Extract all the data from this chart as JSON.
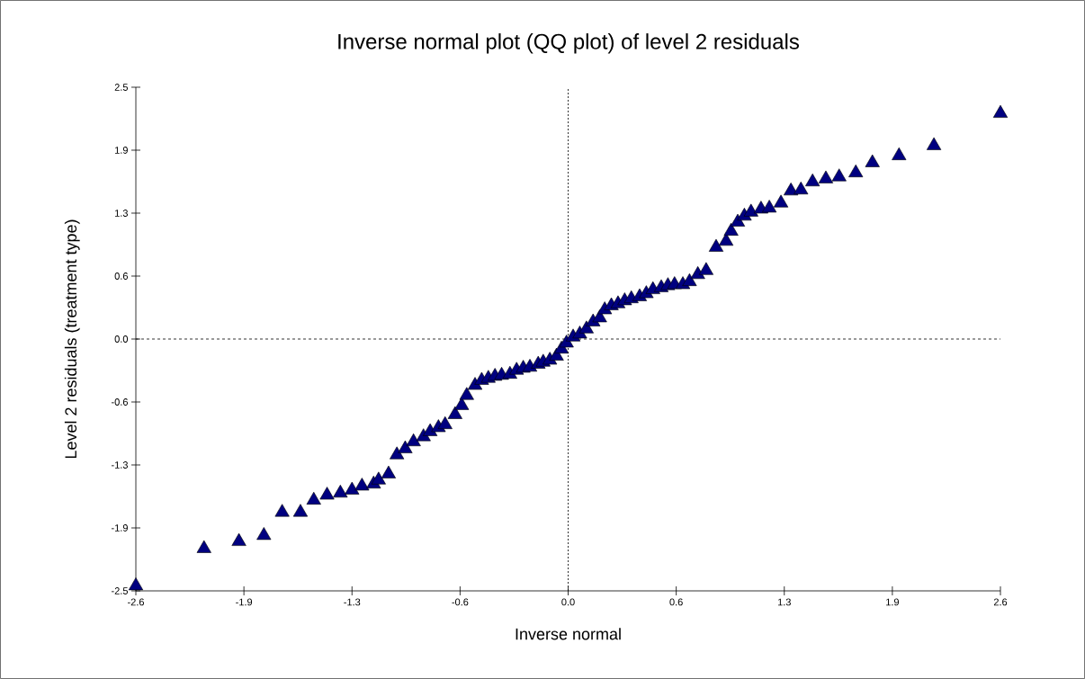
{
  "chart_data": {
    "type": "scatter",
    "title": "Inverse normal plot (QQ plot) of level 2 residuals",
    "xlabel": "Inverse normal",
    "ylabel": "Level 2 residuals (treatment type)",
    "xlim": [
      -2.6,
      2.6
    ],
    "ylim": [
      -2.5,
      2.5
    ],
    "xticks": [
      -2.6,
      {
        "value": -1.95,
        "label": "-1.9"
      },
      -1.3,
      {
        "value": -0.65,
        "label": "-0.6"
      },
      {
        "value": 0,
        "label": "0.0"
      },
      {
        "value": 0.65,
        "label": "0.6"
      },
      1.3,
      {
        "value": 1.95,
        "label": "1.9"
      },
      2.6
    ],
    "yticks": [
      -2.5,
      {
        "value": -1.875,
        "label": "-1.9"
      },
      {
        "value": -1.25,
        "label": "-1.3"
      },
      {
        "value": -0.625,
        "label": "-0.6"
      },
      {
        "value": 0,
        "label": "0.0"
      },
      {
        "value": 0.625,
        "label": "0.6"
      },
      {
        "value": 1.25,
        "label": "1.3"
      },
      {
        "value": 1.875,
        "label": "1.9"
      },
      2.5
    ],
    "grid": false,
    "marker": "triangle",
    "ref_lines": [
      {
        "axis": "x",
        "value": 0,
        "color": "#000000",
        "line_style": "dotted"
      },
      {
        "axis": "y",
        "value": 0,
        "color": "#000000",
        "line_style": "dashed"
      }
    ],
    "series": [
      {
        "color": "#000080",
        "x": [
          -2.6,
          -2.19,
          -1.98,
          -1.83,
          -1.72,
          -1.61,
          -1.53,
          -1.45,
          -1.37,
          -1.3,
          -1.24,
          -1.17,
          -1.14,
          -1.08,
          -1.03,
          -0.98,
          -0.93,
          -0.87,
          -0.83,
          -0.78,
          -0.74,
          -0.68,
          -0.64,
          -0.61,
          -0.56,
          -0.52,
          -0.48,
          -0.44,
          -0.4,
          -0.35,
          -0.31,
          -0.27,
          -0.23,
          -0.18,
          -0.15,
          -0.11,
          -0.07,
          -0.04,
          -0.01,
          0.03,
          0.07,
          0.11,
          0.15,
          0.19,
          0.22,
          0.26,
          0.3,
          0.34,
          0.38,
          0.43,
          0.47,
          0.51,
          0.56,
          0.6,
          0.64,
          0.69,
          0.73,
          0.78,
          0.83,
          0.89,
          0.95,
          0.98,
          1.02,
          1.06,
          1.1,
          1.16,
          1.21,
          1.28,
          1.34,
          1.4,
          1.47,
          1.55,
          1.63,
          1.73,
          1.83,
          1.99,
          2.2,
          2.6
        ],
        "values": [
          -2.45,
          -2.08,
          -2.01,
          -1.95,
          -1.72,
          -1.72,
          -1.6,
          -1.55,
          -1.53,
          -1.5,
          -1.46,
          -1.44,
          -1.4,
          -1.34,
          -1.15,
          -1.09,
          -1.02,
          -0.97,
          -0.92,
          -0.88,
          -0.85,
          -0.75,
          -0.66,
          -0.56,
          -0.46,
          -0.41,
          -0.39,
          -0.37,
          -0.36,
          -0.35,
          -0.31,
          -0.29,
          -0.28,
          -0.25,
          -0.23,
          -0.21,
          -0.17,
          -0.1,
          -0.04,
          0.02,
          0.05,
          0.1,
          0.17,
          0.21,
          0.29,
          0.33,
          0.35,
          0.38,
          0.4,
          0.42,
          0.45,
          0.49,
          0.51,
          0.53,
          0.54,
          0.54,
          0.57,
          0.64,
          0.68,
          0.91,
          0.97,
          1.07,
          1.16,
          1.22,
          1.26,
          1.29,
          1.3,
          1.35,
          1.47,
          1.48,
          1.56,
          1.59,
          1.61,
          1.65,
          1.75,
          1.82,
          1.92,
          2.24
        ]
      }
    ]
  }
}
